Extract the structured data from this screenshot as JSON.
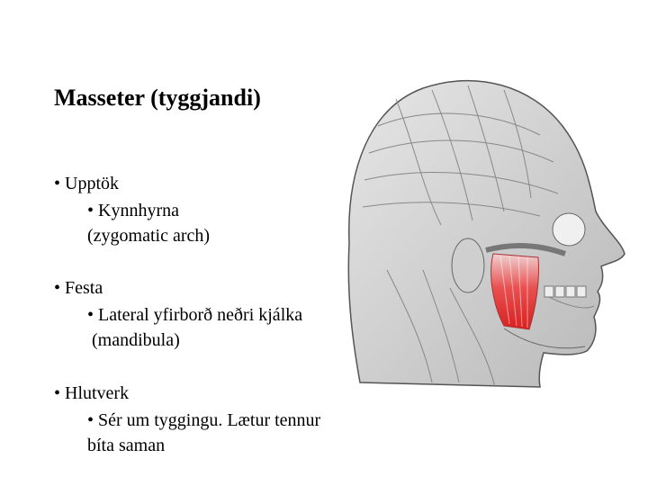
{
  "title": "Masseter (tyggjandi)",
  "sections": [
    {
      "heading": "• Upptök",
      "lines": [
        "• Kynnhyrna",
        "(zygomatic arch)"
      ]
    },
    {
      "heading": "• Festa",
      "lines": [
        "• Lateral yfirborð neðri kjálka",
        " (mandibula)"
      ]
    },
    {
      "heading": "• Hlutverk",
      "lines": [
        "• Sér um tyggingu. Lætur tennur",
        "bíta saman"
      ]
    }
  ]
}
